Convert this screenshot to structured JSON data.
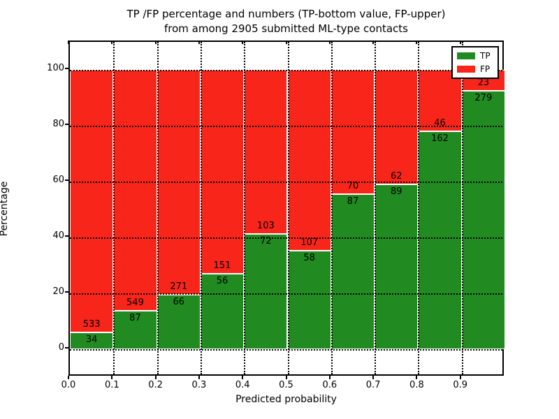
{
  "title": {
    "line1": "TP /FP percentage and numbers (TP-bottom value, FP-upper)",
    "line2": "from among 2905 submitted ML-type contacts"
  },
  "total_contacts": "2905",
  "chart_data": {
    "type": "bar",
    "stacked": true,
    "orientation": "vertical",
    "title": "TP /FP percentage and numbers (TP-bottom value, FP-upper) from among 2905 submitted ML-type contacts",
    "xlabel": "Predicted probability",
    "ylabel": "Percentage",
    "xlim": [
      0.0,
      1.0
    ],
    "ylim": [
      -10,
      110
    ],
    "grid": "dotted",
    "bin_width": 0.1,
    "bin_starts": [
      0.0,
      0.1,
      0.2,
      0.3,
      0.4,
      0.5,
      0.6,
      0.7,
      0.8,
      0.9
    ],
    "xticks": [
      0.0,
      0.1,
      0.2,
      0.3,
      0.4,
      0.5,
      0.6,
      0.7,
      0.8,
      0.9
    ],
    "xtick_labels": [
      "0.0",
      "0.1",
      "0.2",
      "0.3",
      "0.4",
      "0.5",
      "0.6",
      "0.7",
      "0.8",
      "0.9"
    ],
    "yticks": [
      0,
      20,
      40,
      60,
      80,
      100
    ],
    "ytick_labels": [
      "0",
      "20",
      "40",
      "60",
      "80",
      "100"
    ],
    "series": [
      {
        "name": "TP",
        "color": "#218a21",
        "counts": [
          34,
          87,
          66,
          56,
          72,
          58,
          87,
          89,
          162,
          279
        ]
      },
      {
        "name": "FP",
        "color": "#f8251a",
        "counts": [
          533,
          549,
          271,
          151,
          103,
          107,
          70,
          62,
          46,
          23
        ]
      }
    ],
    "tp_percent": [
      6.0,
      13.7,
      19.6,
      27.1,
      41.1,
      35.2,
      55.4,
      58.9,
      77.9,
      92.4
    ],
    "legend": {
      "position": "upper right",
      "entries": [
        {
          "label": "TP",
          "color": "#218a21"
        },
        {
          "label": "FP",
          "color": "#f8251a"
        }
      ]
    }
  }
}
